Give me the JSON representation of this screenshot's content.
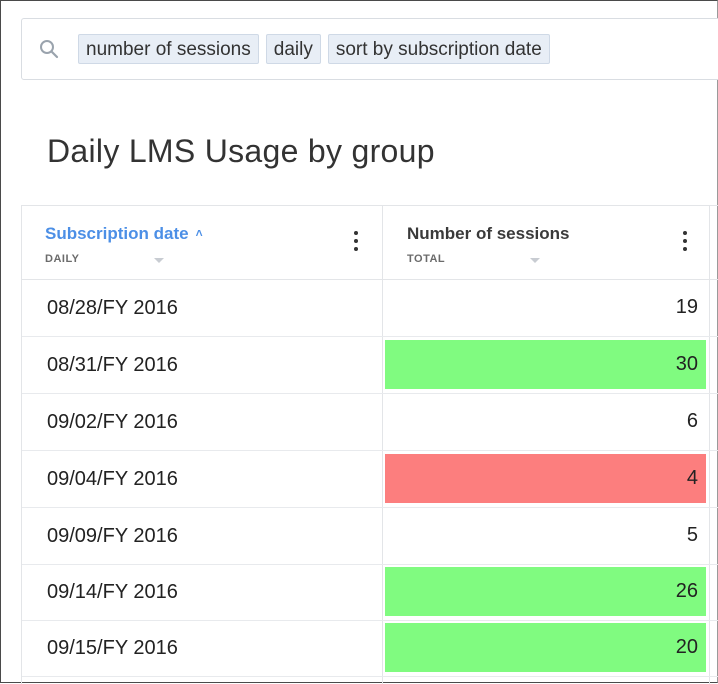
{
  "search": {
    "tokens": [
      "number of sessions",
      "daily",
      "sort by subscription date"
    ]
  },
  "page": {
    "title": "Daily LMS Usage by group"
  },
  "table": {
    "columns": [
      {
        "title": "Subscription date",
        "subtitle": "DAILY",
        "sorted": "ascending"
      },
      {
        "title": "Number of sessions",
        "subtitle": "TOTAL"
      }
    ],
    "rows": [
      {
        "date": "08/28/FY 2016",
        "sessions": "19",
        "highlight": "none"
      },
      {
        "date": "08/31/FY 2016",
        "sessions": "30",
        "highlight": "green"
      },
      {
        "date": "09/02/FY 2016",
        "sessions": "6",
        "highlight": "none"
      },
      {
        "date": "09/04/FY 2016",
        "sessions": "4",
        "highlight": "red"
      },
      {
        "date": "09/09/FY 2016",
        "sessions": "5",
        "highlight": "none"
      },
      {
        "date": "09/14/FY 2016",
        "sessions": "26",
        "highlight": "green"
      },
      {
        "date": "09/15/FY 2016",
        "sessions": "20",
        "highlight": "green"
      }
    ]
  },
  "colors": {
    "green": "#80fb80",
    "red": "#fc7e7e",
    "accent": "#4c8fe6"
  }
}
